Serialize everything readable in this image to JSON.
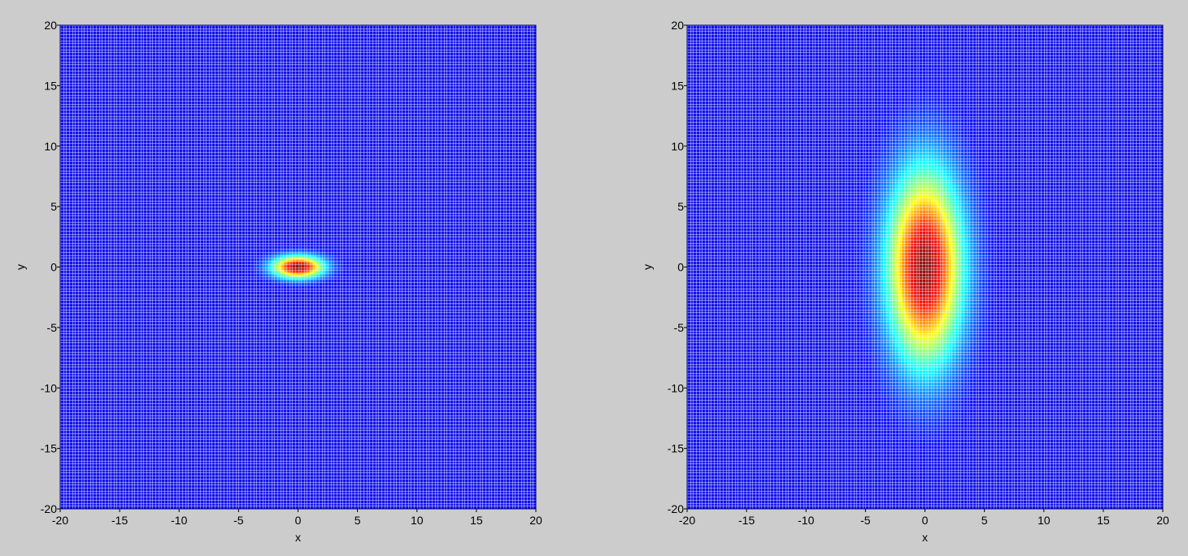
{
  "chart_data": [
    {
      "type": "heatmap",
      "title": "",
      "xlabel": "x",
      "ylabel": "y",
      "xlim": [
        -20,
        20
      ],
      "ylim": [
        -20,
        20
      ],
      "xticks": [
        -20,
        -15,
        -10,
        -5,
        0,
        5,
        10,
        15,
        20
      ],
      "yticks": [
        -20,
        -15,
        -10,
        -5,
        0,
        5,
        10,
        15,
        20
      ],
      "xtick_labels": [
        "-20",
        "-15",
        "-10",
        "-5",
        "0",
        "5",
        "10",
        "15",
        "20"
      ],
      "ytick_labels": [
        "-20",
        "-15",
        "-10",
        "-5",
        "0",
        "5",
        "10",
        "15",
        "20"
      ],
      "grid": true,
      "grid_step": 0.25,
      "colormap": "jet",
      "surface": {
        "function": "gaussian",
        "center": [
          0,
          0
        ],
        "sigma_x": 1.5,
        "sigma_y": 0.65,
        "peak": 1.0
      }
    },
    {
      "type": "heatmap",
      "title": "",
      "xlabel": "x",
      "ylabel": "y",
      "xlim": [
        -20,
        20
      ],
      "ylim": [
        -20,
        20
      ],
      "xticks": [
        -20,
        -15,
        -10,
        -5,
        0,
        5,
        10,
        15,
        20
      ],
      "yticks": [
        -20,
        -15,
        -10,
        -5,
        0,
        5,
        10,
        15,
        20
      ],
      "xtick_labels": [
        "-20",
        "-15",
        "-10",
        "-5",
        "0",
        "5",
        "10",
        "15",
        "20"
      ],
      "ytick_labels": [
        "-20",
        "-15",
        "-10",
        "-5",
        "0",
        "5",
        "10",
        "15",
        "20"
      ],
      "grid": true,
      "grid_step": 0.25,
      "colormap": "jet",
      "surface": {
        "function": "gaussian",
        "center": [
          0,
          0
        ],
        "sigma_x": 2.2,
        "sigma_y": 5.6,
        "peak": 1.0
      }
    }
  ]
}
